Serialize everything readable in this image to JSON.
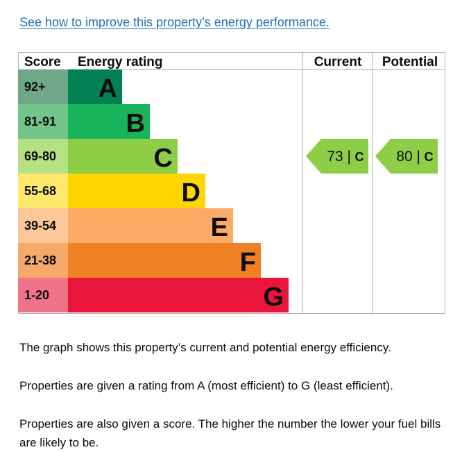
{
  "link": {
    "text": "See how to improve this property’s energy performance."
  },
  "chart_data": {
    "type": "table",
    "columns": {
      "score": "Score",
      "rating": "Energy rating",
      "current": "Current",
      "potential": "Potential"
    },
    "bands": [
      {
        "score": "92+",
        "letter": "A",
        "color": "#008054",
        "score_bg": "#70a789"
      },
      {
        "score": "81-91",
        "letter": "B",
        "color": "#19b459",
        "score_bg": "#74c58c"
      },
      {
        "score": "69-80",
        "letter": "C",
        "color": "#8dce46",
        "score_bg": "#b5e083"
      },
      {
        "score": "55-68",
        "letter": "D",
        "color": "#ffd500",
        "score_bg": "#ffe86b"
      },
      {
        "score": "39-54",
        "letter": "E",
        "color": "#fcaa65",
        "score_bg": "#fdc79a"
      },
      {
        "score": "21-38",
        "letter": "F",
        "color": "#ef8023",
        "score_bg": "#f5a96b"
      },
      {
        "score": "1-20",
        "letter": "G",
        "color": "#e9153b",
        "score_bg": "#f07389"
      }
    ],
    "current": {
      "value": 73,
      "letter": "C",
      "label": "73 |",
      "color": "#8dce46"
    },
    "potential": {
      "value": 80,
      "letter": "C",
      "label": "80 |",
      "color": "#8dce46"
    }
  },
  "text": {
    "p1": "The graph shows this property’s current and potential energy efficiency.",
    "p2": "Properties are given a rating from A (most efficient) to G (least efficient).",
    "p3": "Properties are also given a score. The higher the number the lower your fuel bills are likely to be."
  }
}
